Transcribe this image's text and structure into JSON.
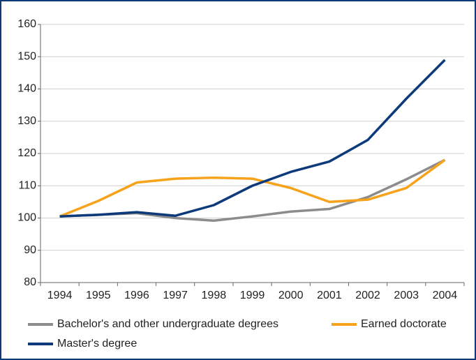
{
  "chart_data": {
    "type": "line",
    "categories": [
      "1994",
      "1995",
      "1996",
      "1997",
      "1998",
      "1999",
      "2000",
      "2001",
      "2002",
      "2003",
      "2004"
    ],
    "series": [
      {
        "name": "Bachelor's and other undergraduate degrees",
        "color": "#8c8c8c",
        "values": [
          100.5,
          101,
          101.5,
          100,
          99.2,
          100.5,
          102,
          102.8,
          106.5,
          112,
          118
        ]
      },
      {
        "name": "Earned doctorate",
        "color": "#f7a21b",
        "values": [
          100.5,
          105.3,
          111,
          112.2,
          112.5,
          112.2,
          109.3,
          105,
          105.7,
          109.3,
          118
        ]
      },
      {
        "name": "Master's degree",
        "color": "#0d3a7a",
        "values": [
          100.5,
          101,
          101.8,
          100.7,
          104,
          110,
          114.3,
          117.5,
          124.2,
          137,
          149
        ]
      }
    ],
    "ylim": [
      80,
      160
    ],
    "yticks": [
      80,
      90,
      100,
      110,
      120,
      130,
      140,
      150,
      160
    ],
    "grid": true,
    "legend": "bottom"
  }
}
